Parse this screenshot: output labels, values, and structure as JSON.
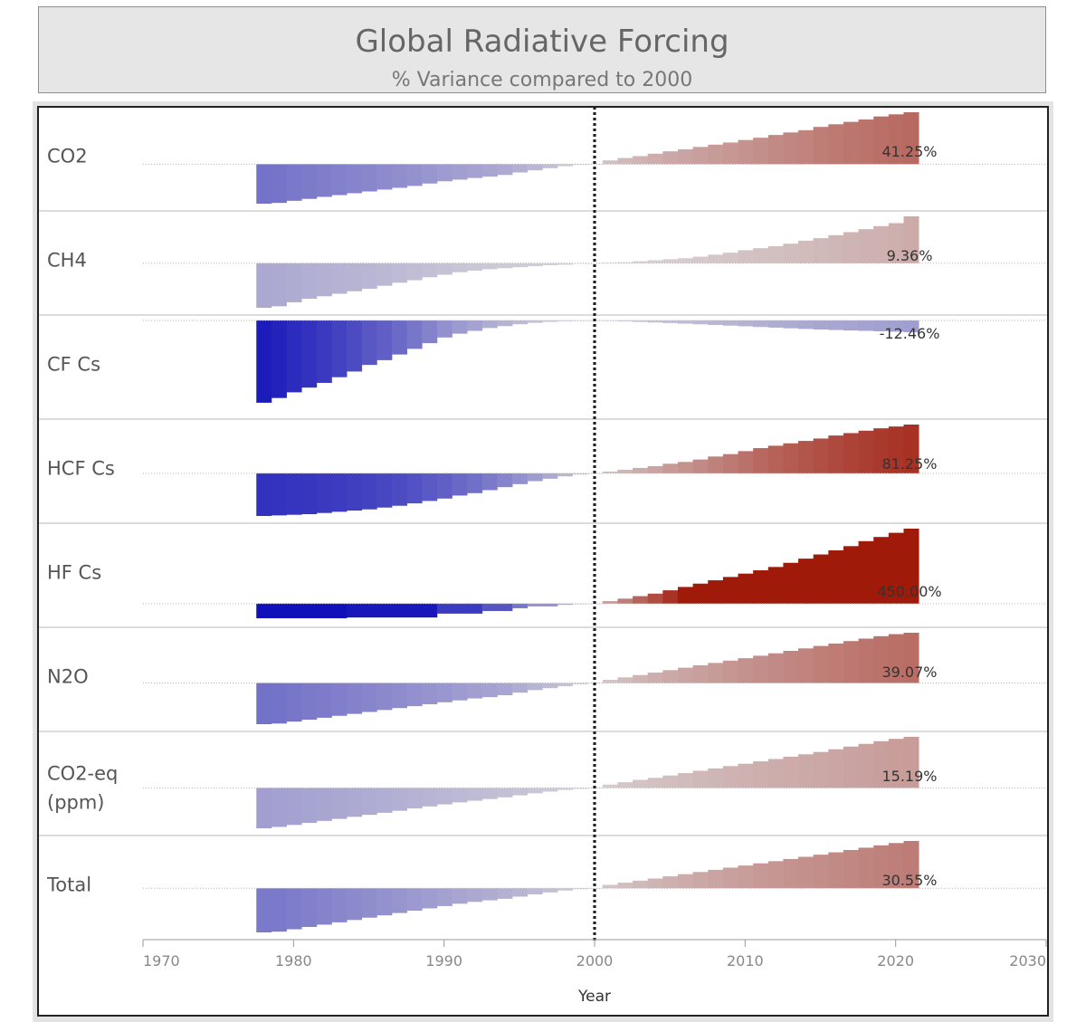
{
  "header": {
    "title": "Global Radiative Forcing",
    "subtitle": "% Variance compared to 2000"
  },
  "colors": {
    "negative_strong": "#0b0bb8",
    "neutral": "#d9d6d9",
    "positive_strong": "#a01a0a",
    "reference_line": "#222222"
  },
  "chart_data": {
    "type": "area",
    "title": "Global Radiative Forcing",
    "subtitle": "% Variance compared to 2000",
    "xlabel": "Year",
    "xlim": [
      1970,
      2030
    ],
    "x_ticks": [
      1970,
      1980,
      1990,
      2000,
      2010,
      2020,
      2030
    ],
    "reference_year": 2000,
    "years": [
      1978,
      1979,
      1980,
      1981,
      1982,
      1983,
      1984,
      1985,
      1986,
      1987,
      1988,
      1989,
      1990,
      1991,
      1992,
      1993,
      1994,
      1995,
      1996,
      1997,
      1998,
      1999,
      2000,
      2001,
      2002,
      2003,
      2004,
      2005,
      2006,
      2007,
      2008,
      2009,
      2010,
      2011,
      2012,
      2013,
      2014,
      2015,
      2016,
      2017,
      2018,
      2019,
      2020,
      2021
    ],
    "series": [
      {
        "name": "CO2",
        "label": "41.25%",
        "values": [
          -31.4,
          -30.8,
          -29.1,
          -27.6,
          -26.0,
          -24.6,
          -23.1,
          -21.7,
          -20.2,
          -18.8,
          -17.3,
          -15.4,
          -13.6,
          -12.3,
          -11.0,
          -9.9,
          -8.6,
          -6.6,
          -4.9,
          -3.2,
          -1.6,
          -0.6,
          0,
          3.0,
          4.9,
          6.4,
          8.3,
          10.2,
          11.8,
          13.7,
          15.5,
          17.2,
          19.2,
          21.0,
          23.2,
          25.2,
          27.0,
          29.6,
          31.7,
          33.6,
          35.5,
          37.9,
          39.6,
          41.25
        ]
      },
      {
        "name": "CH4",
        "label": "9.36%",
        "values": [
          -8.9,
          -8.6,
          -7.8,
          -7.1,
          -6.6,
          -6.1,
          -5.6,
          -5.1,
          -4.5,
          -3.9,
          -3.4,
          -2.8,
          -2.3,
          -1.8,
          -1.5,
          -1.2,
          -1.0,
          -0.8,
          -0.6,
          -0.4,
          -0.3,
          -0.1,
          0,
          0.1,
          0.2,
          0.4,
          0.6,
          0.8,
          1.0,
          1.3,
          1.7,
          2.1,
          2.6,
          3.0,
          3.4,
          3.9,
          4.5,
          5.0,
          5.6,
          6.2,
          6.8,
          7.4,
          8.0,
          9.36
        ]
      },
      {
        "name": "CF Cs",
        "label": "-12.46%",
        "values": [
          -87.0,
          -82.0,
          -76.0,
          -71.0,
          -66.0,
          -60.0,
          -54.0,
          -47.0,
          -42.0,
          -36.0,
          -30.0,
          -24.0,
          -18.0,
          -14.0,
          -11.0,
          -8.0,
          -6.0,
          -4.0,
          -2.5,
          -1.5,
          -0.8,
          -0.3,
          0,
          -0.5,
          -1.0,
          -1.6,
          -2.2,
          -2.8,
          -3.4,
          -4.1,
          -4.8,
          -5.5,
          -6.2,
          -6.9,
          -7.6,
          -8.3,
          -9.0,
          -9.6,
          -10.1,
          -10.6,
          -11.0,
          -11.5,
          -11.9,
          -12.46
        ]
      },
      {
        "name": "HCF Cs",
        "label": "81.25%",
        "values": [
          -71.0,
          -70.0,
          -69.0,
          -68.0,
          -66.0,
          -64.0,
          -62.0,
          -60.0,
          -57.0,
          -54.0,
          -50.0,
          -46.0,
          -42.0,
          -37.0,
          -33.0,
          -28.0,
          -23.0,
          -18.0,
          -13.0,
          -9.0,
          -5.0,
          -2.0,
          0,
          3.0,
          6.0,
          9.0,
          12.0,
          16.0,
          19.0,
          23.0,
          28.0,
          32.0,
          37.0,
          42.0,
          46.0,
          50.0,
          54.0,
          58.0,
          63.0,
          67.0,
          71.0,
          75.0,
          78.0,
          81.25
        ]
      },
      {
        "name": "HF Cs",
        "label": "450.00%",
        "values": [
          -95.0,
          -95.0,
          -95.0,
          -95.0,
          -95.0,
          -95.0,
          -90.0,
          -90.0,
          -90.0,
          -90.0,
          -90.0,
          -90.0,
          -65.0,
          -65.0,
          -65.0,
          -48.0,
          -48.0,
          -30.0,
          -18.0,
          -18.0,
          -8.0,
          -3.0,
          0,
          15.0,
          30.0,
          45.0,
          60.0,
          80.0,
          100.0,
          120.0,
          140.0,
          160.0,
          180.0,
          200.0,
          220.0,
          245.0,
          270.0,
          295.0,
          320.0,
          345.0,
          375.0,
          400.0,
          425.0,
          450.0
        ]
      },
      {
        "name": "N2O",
        "label": "39.07%",
        "values": [
          -32.0,
          -31.5,
          -30.0,
          -28.5,
          -27.0,
          -25.5,
          -24.0,
          -22.5,
          -21.0,
          -19.5,
          -18.0,
          -16.5,
          -15.0,
          -13.5,
          -12.0,
          -11.0,
          -9.5,
          -7.5,
          -5.5,
          -4.0,
          -2.5,
          -1.0,
          0,
          2.5,
          4.4,
          6.2,
          8.1,
          10.0,
          11.9,
          13.8,
          15.6,
          17.4,
          19.3,
          21.2,
          23.1,
          25.0,
          26.9,
          28.8,
          30.7,
          32.6,
          34.5,
          36.4,
          38.0,
          39.07
        ]
      },
      {
        "name": "CO2-eq (ppm)",
        "label": "15.19%",
        "values": [
          -12.0,
          -11.6,
          -11.0,
          -10.4,
          -9.8,
          -9.2,
          -8.6,
          -8.0,
          -7.4,
          -6.8,
          -6.1,
          -5.5,
          -4.9,
          -4.3,
          -3.8,
          -3.3,
          -2.8,
          -2.2,
          -1.6,
          -1.1,
          -0.6,
          -0.3,
          0,
          1.0,
          1.7,
          2.4,
          3.0,
          3.7,
          4.4,
          5.1,
          5.8,
          6.5,
          7.2,
          7.9,
          8.6,
          9.3,
          10.0,
          10.7,
          11.5,
          12.3,
          13.1,
          13.9,
          14.6,
          15.19
        ]
      },
      {
        "name": "Total",
        "label": "30.55%",
        "values": [
          -28.5,
          -28.0,
          -26.5,
          -25.0,
          -23.5,
          -22.0,
          -20.5,
          -19.0,
          -17.5,
          -16.0,
          -14.5,
          -13.0,
          -11.5,
          -10.0,
          -8.8,
          -7.8,
          -6.8,
          -5.4,
          -4.0,
          -2.7,
          -1.5,
          -0.6,
          0,
          2.2,
          3.6,
          4.9,
          6.3,
          7.7,
          9.1,
          10.5,
          11.9,
          13.3,
          14.7,
          16.1,
          17.5,
          18.9,
          20.3,
          21.7,
          23.2,
          24.7,
          26.2,
          27.7,
          29.2,
          30.55
        ]
      }
    ]
  }
}
